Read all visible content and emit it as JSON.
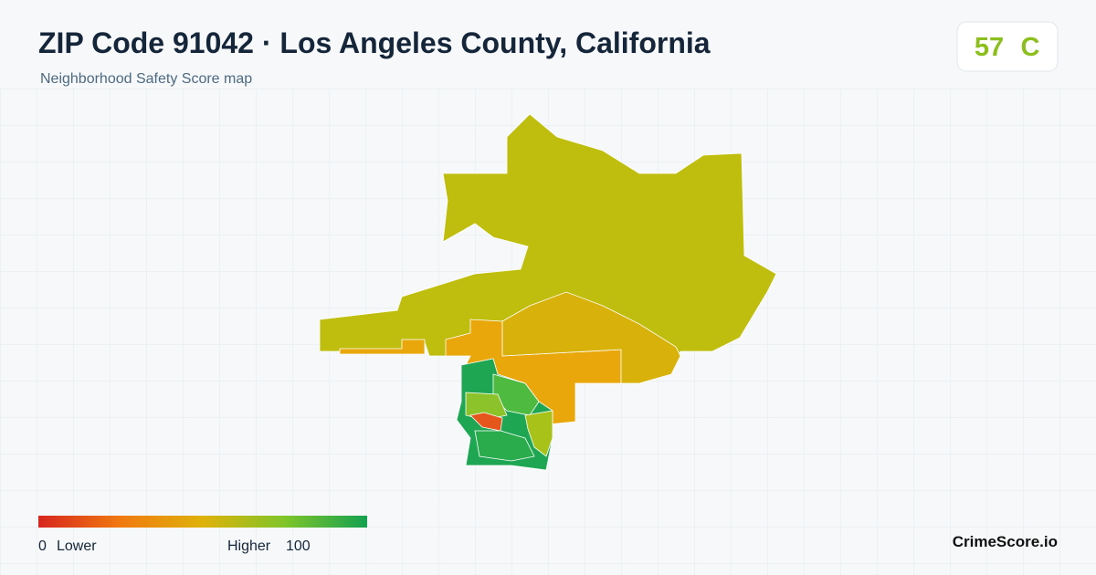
{
  "header": {
    "title": "ZIP Code 91042 · Los Angeles County, California",
    "subtitle": "Neighborhood Safety Score map"
  },
  "score": {
    "value": "57",
    "grade": "C"
  },
  "legend": {
    "min": "0",
    "min_label": "Lower",
    "max_label": "Higher",
    "max": "100"
  },
  "brand": "CrimeScore.io"
}
